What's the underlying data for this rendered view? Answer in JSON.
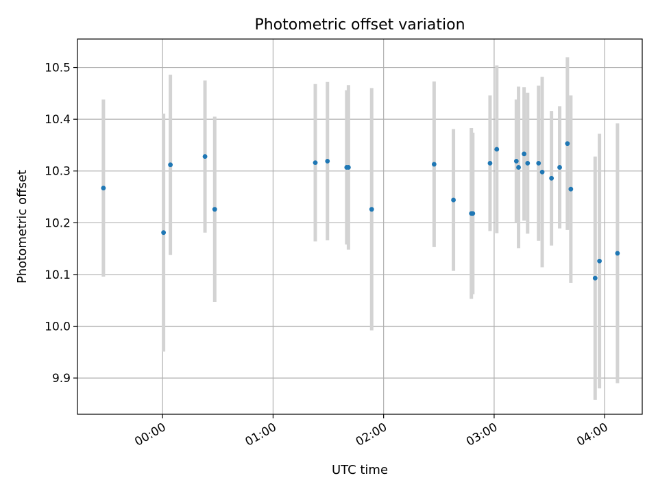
{
  "chart_data": {
    "type": "scatter",
    "title": "Photometric offset variation",
    "xlabel": "UTC time",
    "ylabel": "Photometric offset",
    "x_unit": "hours UTC",
    "xlim": [
      -0.77,
      4.34
    ],
    "ylim": [
      9.83,
      10.555
    ],
    "x_ticks": [
      {
        "value": 0,
        "label": "00:00"
      },
      {
        "value": 1,
        "label": "01:00"
      },
      {
        "value": 2,
        "label": "02:00"
      },
      {
        "value": 3,
        "label": "03:00"
      },
      {
        "value": 4,
        "label": "04:00"
      }
    ],
    "y_ticks": [
      {
        "value": 9.9,
        "label": "9.9"
      },
      {
        "value": 10.0,
        "label": "10.0"
      },
      {
        "value": 10.1,
        "label": "10.1"
      },
      {
        "value": 10.2,
        "label": "10.2"
      },
      {
        "value": 10.3,
        "label": "10.3"
      },
      {
        "value": 10.4,
        "label": "10.4"
      },
      {
        "value": 10.5,
        "label": "10.5"
      }
    ],
    "grid": true,
    "colors": {
      "point": "#1f77b4",
      "errorbar": "#d3d3d3",
      "grid": "#b0b0b0"
    },
    "points": [
      {
        "x": -0.535,
        "y": 10.267,
        "err": 0.171
      },
      {
        "x": 0.009,
        "y": 10.181,
        "err": 0.23
      },
      {
        "x": 0.071,
        "y": 10.312,
        "err": 0.174
      },
      {
        "x": 0.384,
        "y": 10.328,
        "err": 0.147
      },
      {
        "x": 0.472,
        "y": 10.226,
        "err": 0.179
      },
      {
        "x": 1.382,
        "y": 10.316,
        "err": 0.152
      },
      {
        "x": 1.492,
        "y": 10.319,
        "err": 0.153
      },
      {
        "x": 1.666,
        "y": 10.307,
        "err": 0.149
      },
      {
        "x": 1.682,
        "y": 10.307,
        "err": 0.159
      },
      {
        "x": 1.892,
        "y": 10.226,
        "err": 0.234
      },
      {
        "x": 2.457,
        "y": 10.313,
        "err": 0.16
      },
      {
        "x": 2.632,
        "y": 10.244,
        "err": 0.137
      },
      {
        "x": 2.794,
        "y": 10.218,
        "err": 0.165
      },
      {
        "x": 2.807,
        "y": 10.218,
        "err": 0.156
      },
      {
        "x": 2.963,
        "y": 10.315,
        "err": 0.131
      },
      {
        "x": 3.024,
        "y": 10.342,
        "err": 0.162
      },
      {
        "x": 3.201,
        "y": 10.319,
        "err": 0.119
      },
      {
        "x": 3.221,
        "y": 10.307,
        "err": 0.156
      },
      {
        "x": 3.271,
        "y": 10.333,
        "err": 0.129
      },
      {
        "x": 3.303,
        "y": 10.315,
        "err": 0.136
      },
      {
        "x": 3.402,
        "y": 10.315,
        "err": 0.15
      },
      {
        "x": 3.435,
        "y": 10.298,
        "err": 0.184
      },
      {
        "x": 3.519,
        "y": 10.286,
        "err": 0.13
      },
      {
        "x": 3.593,
        "y": 10.307,
        "err": 0.118
      },
      {
        "x": 3.663,
        "y": 10.353,
        "err": 0.167
      },
      {
        "x": 3.694,
        "y": 10.265,
        "err": 0.181
      },
      {
        "x": 3.914,
        "y": 10.093,
        "err": 0.235
      },
      {
        "x": 3.953,
        "y": 10.126,
        "err": 0.246
      },
      {
        "x": 4.116,
        "y": 10.141,
        "err": 0.251
      }
    ]
  }
}
